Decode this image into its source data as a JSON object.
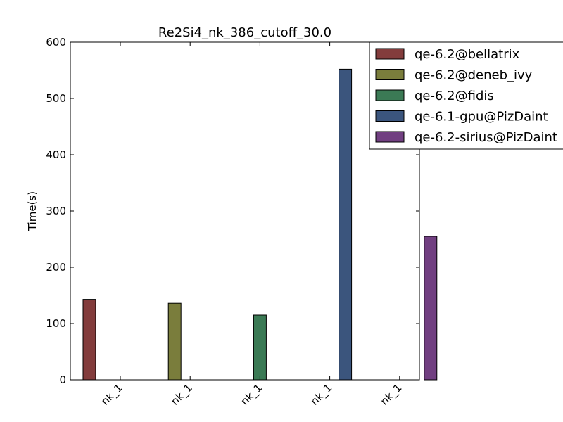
{
  "chart_data": {
    "type": "bar",
    "title": "Re2Si4_nk_386_cutoff_30.0",
    "xlabel": "",
    "ylabel": "Time(s)",
    "ylim": [
      0,
      600
    ],
    "yticks": [
      0,
      100,
      200,
      300,
      400,
      500,
      600
    ],
    "categories": [
      "nk_1",
      "nk_1",
      "nk_1",
      "nk_1",
      "nk_1"
    ],
    "grid": false,
    "legend_position": "top-right",
    "series": [
      {
        "name": "qe-6.2@bellatrix",
        "color": "#833c3c",
        "values": [
          143,
          null,
          null,
          null,
          null
        ]
      },
      {
        "name": "qe-6.2@deneb_ivy",
        "color": "#7a7d3c",
        "values": [
          null,
          136,
          null,
          null,
          null
        ]
      },
      {
        "name": "qe-6.2@fidis",
        "color": "#3b7a55",
        "values": [
          null,
          null,
          115,
          null,
          null
        ]
      },
      {
        "name": "qe-6.1-gpu@PizDaint",
        "color": "#3b557d",
        "values": [
          null,
          null,
          null,
          552,
          null
        ]
      },
      {
        "name": "qe-6.2-sirius@PizDaint",
        "color": "#713f81",
        "values": [
          null,
          null,
          null,
          null,
          255
        ]
      }
    ]
  }
}
